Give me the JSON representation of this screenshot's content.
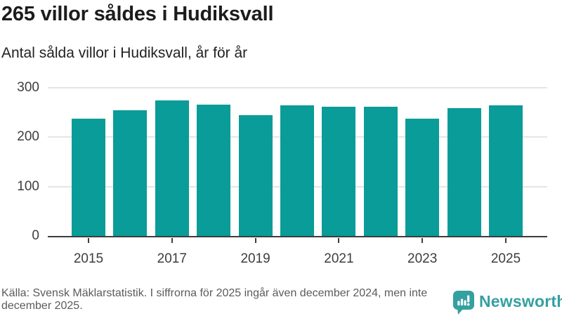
{
  "title": "265 villor såldes i Hudiksvall",
  "subtitle": "Antal sålda villor i Hudiksvall, år för år",
  "footer": {
    "source_note": "Källa: Svensk Mäklarstatistik. I siffrorna för 2025 ingår även december 2024, men inte december 2025."
  },
  "branding": {
    "logo_text": "Newsworthy",
    "logo_icon": "bar-chart-speech-bubble-icon",
    "logo_color": "#34a0a0"
  },
  "colors": {
    "bar": "#0a9c98",
    "axis_line": "#3d3d3d",
    "gridline": "#e5e5e5",
    "title_text": "#1c1c1c",
    "axis_text": "#3d3d3d",
    "footer_text": "#5b5b5b"
  },
  "chart_data": {
    "type": "bar",
    "categories": [
      "2015",
      "2016",
      "2017",
      "2018",
      "2019",
      "2020",
      "2021",
      "2022",
      "2023",
      "2024",
      "2025"
    ],
    "values": [
      237,
      254,
      275,
      266,
      244,
      264,
      261,
      261,
      237,
      259,
      265
    ],
    "title": "265 villor såldes i Hudiksvall",
    "subtitle": "Antal sålda villor i Hudiksvall, år för år",
    "xlabel": "",
    "ylabel": "",
    "ylim": [
      0,
      300
    ],
    "yticks": [
      0,
      100,
      200,
      300
    ],
    "xtick_labels": [
      "2015",
      "2017",
      "2019",
      "2021",
      "2023",
      "2025"
    ],
    "grid": true,
    "legend": false,
    "bar_color": "#0a9c98"
  }
}
